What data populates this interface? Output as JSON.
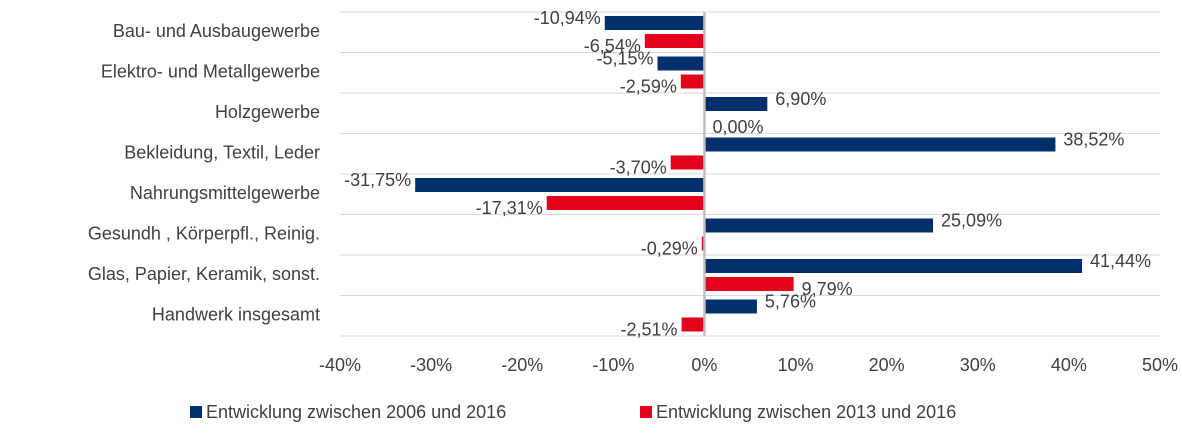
{
  "chart_data": {
    "type": "bar",
    "orientation": "horizontal",
    "categories": [
      "Bau- und Ausbaugewerbe",
      "Elektro- und Metallgewerbe",
      "Holzgewerbe",
      "Bekleidung, Textil, Leder",
      "Nahrungsmittelgewerbe",
      "Gesundh , Körperpfl., Reinig.",
      "Glas, Papier, Keramik, sonst.",
      "Handwerk insgesamt"
    ],
    "series": [
      {
        "name": "Entwicklung zwischen 2006 und 2016",
        "color": "#002f6c",
        "values": [
          -10.94,
          -5.15,
          6.9,
          38.52,
          -31.75,
          25.09,
          41.44,
          5.76
        ],
        "value_labels": [
          "-10,94%",
          "-5,15%",
          "6,90%",
          "38,52%",
          "-31,75%",
          "25,09%",
          "41,44%",
          "5,76%"
        ]
      },
      {
        "name": "Entwicklung zwischen 2013 und 2016",
        "color": "#e2001a",
        "values": [
          -6.54,
          -2.59,
          0.0,
          -3.7,
          -17.31,
          -0.29,
          9.79,
          -2.51
        ],
        "value_labels": [
          "-6,54%",
          "-2,59%",
          "0,00%",
          "-3,70%",
          "-17,31%",
          "-0,29%",
          "9,79%",
          "-2,51%"
        ]
      }
    ],
    "xlim": [
      -40,
      50
    ],
    "xticks": [
      {
        "value": -40,
        "label": "-40%"
      },
      {
        "value": -30,
        "label": "-30%"
      },
      {
        "value": -20,
        "label": "-20%"
      },
      {
        "value": -10,
        "label": "-10%"
      },
      {
        "value": 0,
        "label": "0%"
      },
      {
        "value": 10,
        "label": "10%"
      },
      {
        "value": 20,
        "label": "20%"
      },
      {
        "value": 30,
        "label": "30%"
      },
      {
        "value": 40,
        "label": "40%"
      },
      {
        "value": 50,
        "label": "50%"
      }
    ],
    "grid": true,
    "legend": "bottom"
  }
}
